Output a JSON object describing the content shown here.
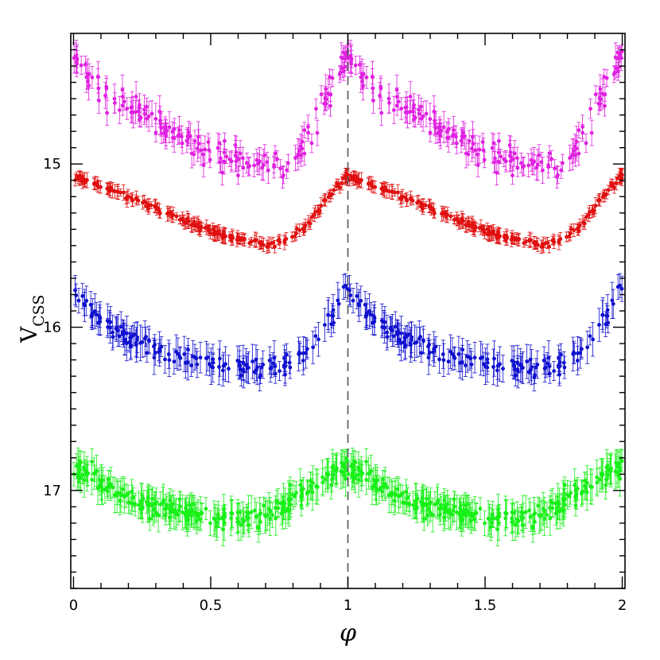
{
  "chart_data": {
    "type": "scatter",
    "title": "",
    "xlabel": "φ",
    "ylabel": "V",
    "ylabel_subscript": "CSS",
    "xlim": [
      -0.01,
      2.01
    ],
    "ylim": [
      17.6,
      14.2
    ],
    "y_inverted": true,
    "x_ticks": [
      0,
      0.5,
      1,
      1.5,
      2
    ],
    "x_tick_labels": [
      "0",
      "0.5",
      "1",
      "1.5",
      "2"
    ],
    "y_ticks": [
      15,
      16,
      17
    ],
    "y_tick_labels": [
      "15",
      "16",
      "17"
    ],
    "reference_line": {
      "x": 1,
      "style": "dashed"
    },
    "series": [
      {
        "name": "magenta",
        "color": "#e020e0",
        "points_per_cycle": 170,
        "error": 0.07,
        "scatter": 0.09,
        "profile": [
          [
            0.0,
            14.35
          ],
          [
            0.08,
            14.5
          ],
          [
            0.2,
            14.65
          ],
          [
            0.35,
            14.8
          ],
          [
            0.5,
            14.92
          ],
          [
            0.62,
            14.97
          ],
          [
            0.72,
            15.0
          ],
          [
            0.78,
            14.98
          ],
          [
            0.85,
            14.85
          ],
          [
            0.9,
            14.7
          ],
          [
            0.95,
            14.5
          ],
          [
            0.98,
            14.38
          ],
          [
            1.0,
            14.35
          ]
        ]
      },
      {
        "name": "red",
        "color": "#e01010",
        "points_per_cycle": 200,
        "error": 0.035,
        "scatter": 0.02,
        "profile": [
          [
            0.0,
            15.08
          ],
          [
            0.05,
            15.1
          ],
          [
            0.15,
            15.17
          ],
          [
            0.3,
            15.27
          ],
          [
            0.45,
            15.38
          ],
          [
            0.55,
            15.44
          ],
          [
            0.65,
            15.48
          ],
          [
            0.72,
            15.49
          ],
          [
            0.78,
            15.46
          ],
          [
            0.85,
            15.38
          ],
          [
            0.9,
            15.27
          ],
          [
            0.95,
            15.15
          ],
          [
            1.0,
            15.07
          ]
        ]
      },
      {
        "name": "blue",
        "color": "#1010d0",
        "points_per_cycle": 160,
        "error": 0.08,
        "scatter": 0.06,
        "profile": [
          [
            0.0,
            15.78
          ],
          [
            0.05,
            15.88
          ],
          [
            0.15,
            16.02
          ],
          [
            0.3,
            16.15
          ],
          [
            0.45,
            16.22
          ],
          [
            0.6,
            16.25
          ],
          [
            0.7,
            16.26
          ],
          [
            0.8,
            16.2
          ],
          [
            0.87,
            16.1
          ],
          [
            0.92,
            16.0
          ],
          [
            0.96,
            15.88
          ],
          [
            1.0,
            15.74
          ]
        ]
      },
      {
        "name": "green",
        "color": "#18f018",
        "points_per_cycle": 260,
        "error": 0.08,
        "scatter": 0.06,
        "profile": [
          [
            0.0,
            16.85
          ],
          [
            0.08,
            16.92
          ],
          [
            0.2,
            17.05
          ],
          [
            0.35,
            17.12
          ],
          [
            0.5,
            17.17
          ],
          [
            0.6,
            17.18
          ],
          [
            0.7,
            17.16
          ],
          [
            0.8,
            17.05
          ],
          [
            0.9,
            16.93
          ],
          [
            1.0,
            16.85
          ]
        ]
      }
    ]
  }
}
